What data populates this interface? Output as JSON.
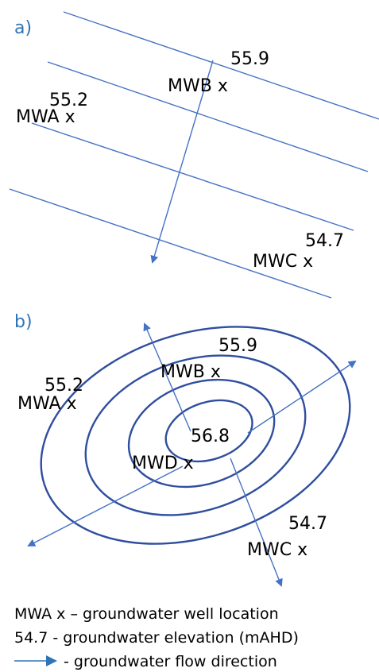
{
  "panel_a": {
    "label": "a)",
    "wells": {
      "mwb": {
        "elevation": "55.9",
        "name": "MWB x"
      },
      "mwa": {
        "elevation": "55.2",
        "name": "MWA x"
      },
      "mwc": {
        "elevation": "54.7",
        "name": "MWC x"
      }
    }
  },
  "panel_b": {
    "label": "b)",
    "wells": {
      "mwb": {
        "elevation": "55.9",
        "name": "MWB x"
      },
      "mwa": {
        "elevation": "55.2",
        "name": "MWA x"
      },
      "mwd": {
        "elevation": "56.8",
        "name": "MWD x"
      },
      "mwc": {
        "elevation": "54.7",
        "name": "MWC x"
      }
    }
  },
  "legend": {
    "well": "MWA x – groundwater well location",
    "elevation": "54.7 - groundwater elevation (mAHD)",
    "flow": " - groundwater flow direction"
  },
  "colors": {
    "contour_thin": "#4472C4",
    "contour_bold": "#2F4E9E",
    "accent": "#2E75B6"
  }
}
